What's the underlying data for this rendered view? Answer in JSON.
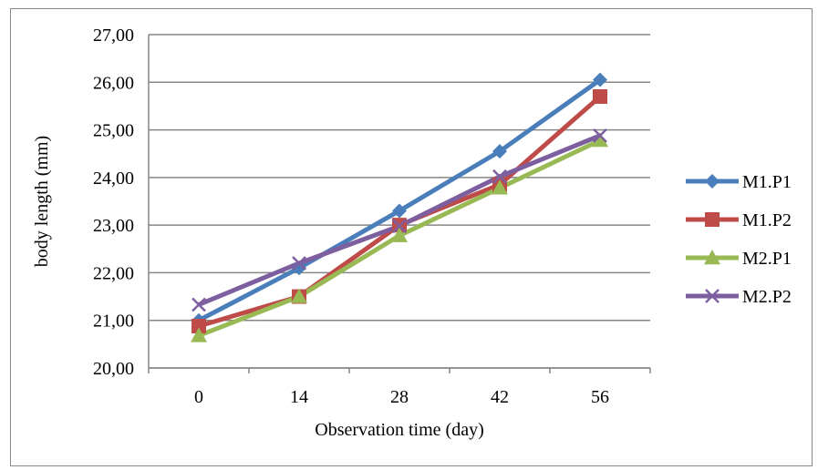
{
  "chart_data": {
    "type": "line",
    "title": "",
    "xlabel": "Observation  time (day)",
    "ylabel": "body length  (mm)",
    "categories": [
      "0",
      "14",
      "28",
      "42",
      "56"
    ],
    "ylim": [
      20,
      27
    ],
    "yticks": [
      "20,00",
      "21,00",
      "22,00",
      "23,00",
      "24,00",
      "25,00",
      "26,00",
      "27,00"
    ],
    "grid": true,
    "legend_position": "right",
    "series": [
      {
        "name": "M1.P1",
        "values": [
          21.0,
          22.1,
          23.3,
          24.55,
          26.05
        ],
        "color": "#4a7ebb",
        "marker": "diamond"
      },
      {
        "name": "M1.P2",
        "values": [
          20.88,
          21.5,
          23.0,
          23.85,
          25.7
        ],
        "color": "#be4b48",
        "marker": "square"
      },
      {
        "name": "M2.P1",
        "values": [
          20.68,
          21.5,
          22.78,
          23.78,
          24.78
        ],
        "color": "#98b954",
        "marker": "triangle"
      },
      {
        "name": "M2.P2",
        "values": [
          21.33,
          22.2,
          22.98,
          24.02,
          24.88
        ],
        "color": "#7d5fa0",
        "marker": "x"
      }
    ]
  }
}
